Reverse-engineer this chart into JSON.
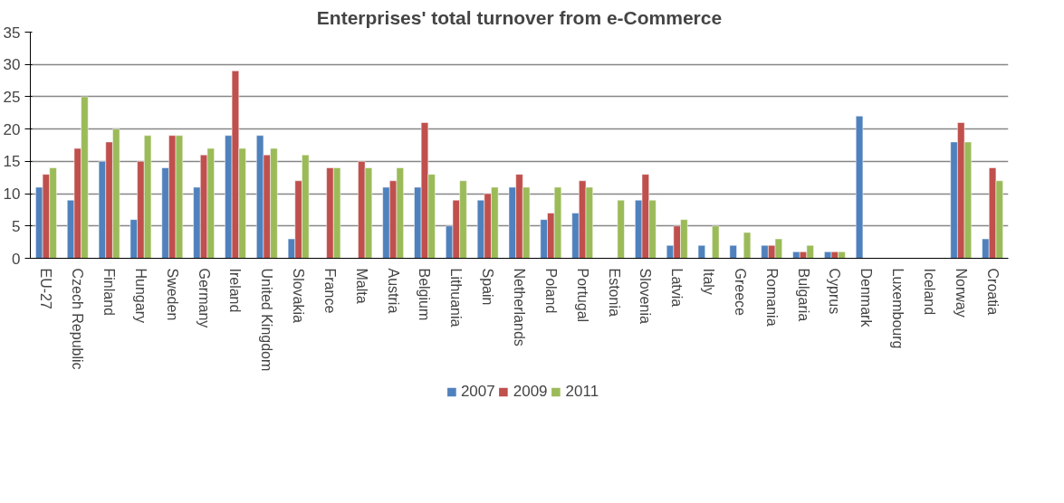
{
  "chart_data": {
    "type": "bar",
    "title": "Enterprises' total turnover from e-Commerce",
    "categories": [
      "EU-27",
      "Czech Republic",
      "Finland",
      "Hungary",
      "Sweden",
      "Germany",
      "Ireland",
      "United Kingdom",
      "Slovakia",
      "France",
      "Malta",
      "Austria",
      "Belgium",
      "Lithuania",
      "Spain",
      "Netherlands",
      "Poland",
      "Portugal",
      "Estonia",
      "Slovenia",
      "Latvia",
      "Italy",
      "Greece",
      "Romania",
      "Bulgaria",
      "Cyprus",
      "Denmark",
      "Luxembourg",
      "Iceland",
      "Norway",
      "Croatia"
    ],
    "series": [
      {
        "name": "2007",
        "color": "#4f81bd",
        "values": [
          11,
          9,
          15,
          6,
          14,
          11,
          19,
          19,
          3,
          null,
          null,
          11,
          11,
          5,
          9,
          11,
          6,
          7,
          null,
          9,
          2,
          2,
          2,
          2,
          1,
          1,
          22,
          null,
          null,
          18,
          3
        ]
      },
      {
        "name": "2009",
        "color": "#c0504d",
        "values": [
          13,
          17,
          18,
          15,
          19,
          16,
          29,
          16,
          12,
          14,
          15,
          12,
          21,
          9,
          10,
          13,
          7,
          12,
          null,
          13,
          5,
          null,
          null,
          2,
          1,
          1,
          null,
          null,
          null,
          21,
          14
        ]
      },
      {
        "name": "2011",
        "color": "#9bbb59",
        "values": [
          14,
          25,
          20,
          19,
          19,
          17,
          17,
          17,
          16,
          14,
          14,
          14,
          13,
          12,
          11,
          11,
          11,
          11,
          9,
          9,
          6,
          5,
          4,
          3,
          2,
          1,
          null,
          null,
          null,
          18,
          12
        ]
      }
    ],
    "ylim": [
      0,
      35
    ],
    "yticks": [
      0,
      5,
      10,
      15,
      20,
      25,
      30,
      35
    ],
    "grid": "y",
    "legend": "bottom"
  }
}
